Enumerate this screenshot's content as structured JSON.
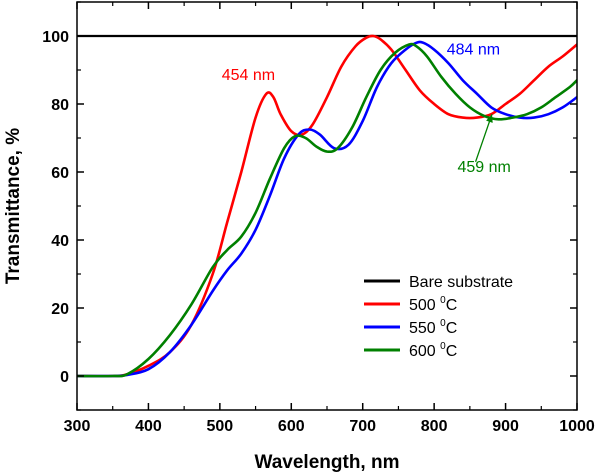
{
  "chart_data": {
    "type": "line",
    "title": "",
    "xlabel": "Wavelength, nm",
    "ylabel": "Transmittance, %",
    "xlim": [
      300,
      1000
    ],
    "ylim": [
      -10,
      110
    ],
    "xticks": [
      300,
      400,
      500,
      600,
      700,
      800,
      900,
      1000
    ],
    "xtick_labels": [
      "300",
      "400",
      "500",
      "600",
      "700",
      "800",
      "900",
      "1000"
    ],
    "yticks": [
      0,
      20,
      40,
      60,
      80,
      100
    ],
    "ytick_labels": [
      "0",
      "20",
      "40",
      "60",
      "80",
      "100"
    ],
    "grid": false,
    "legend_position": "bottom-right",
    "series": [
      {
        "name": "Bare substrate",
        "name_sup": "",
        "color": "#000000",
        "x": [
          300,
          400,
          500,
          600,
          700,
          800,
          900,
          1000
        ],
        "y": [
          100,
          100,
          100,
          100,
          100,
          100,
          100,
          100
        ]
      },
      {
        "name": "500 ",
        "name_sup": "0",
        "name_suffix": "C",
        "color": "#ff0000",
        "x": [
          300,
          350,
          370,
          400,
          430,
          460,
          490,
          510,
          530,
          550,
          565,
          575,
          585,
          600,
          615,
          630,
          650,
          670,
          690,
          705,
          715,
          725,
          740,
          760,
          780,
          800,
          820,
          840,
          860,
          880,
          900,
          920,
          940,
          960,
          980,
          1000
        ],
        "y": [
          0,
          0,
          0.5,
          3,
          7,
          15,
          30,
          45,
          60,
          76,
          83,
          82,
          77,
          72,
          71,
          74,
          82,
          91,
          97,
          99.5,
          100,
          99,
          96,
          90,
          84,
          80,
          77,
          76,
          76,
          77,
          80,
          83,
          87,
          91,
          94,
          97.5
        ]
      },
      {
        "name": "550 ",
        "name_sup": "0",
        "name_suffix": "C",
        "color": "#0000ff",
        "x": [
          300,
          350,
          370,
          400,
          430,
          460,
          490,
          510,
          530,
          550,
          570,
          590,
          610,
          625,
          640,
          660,
          680,
          700,
          720,
          740,
          760,
          775,
          785,
          800,
          820,
          840,
          860,
          880,
          900,
          920,
          940,
          960,
          980,
          1000
        ],
        "y": [
          0,
          0,
          0.3,
          2,
          7,
          15,
          25,
          31,
          36,
          43,
          53,
          64,
          71,
          72.5,
          71,
          67,
          68,
          75,
          85,
          92,
          96,
          98,
          98,
          96,
          92,
          87,
          83,
          79,
          77,
          76,
          76,
          77,
          79,
          82
        ]
      },
      {
        "name": "600 ",
        "name_sup": "0",
        "name_suffix": "C",
        "color": "#008000",
        "x": [
          300,
          350,
          370,
          400,
          430,
          460,
          490,
          510,
          530,
          550,
          570,
          590,
          605,
          620,
          635,
          650,
          665,
          685,
          705,
          725,
          745,
          765,
          775,
          790,
          810,
          830,
          850,
          870,
          890,
          910,
          930,
          950,
          970,
          990,
          1000
        ],
        "y": [
          0,
          0,
          0.5,
          5,
          12,
          21,
          32,
          37,
          41,
          48,
          58,
          67,
          70.5,
          70,
          67.5,
          66,
          67,
          73,
          82,
          90,
          95,
          97.5,
          97,
          94,
          88,
          83,
          79,
          76.5,
          75.5,
          76,
          77,
          79,
          82,
          85,
          87
        ]
      }
    ],
    "annotations": [
      {
        "text": "454 nm",
        "color": "#ff0000",
        "x": 540,
        "y": 87
      },
      {
        "text": "484 nm",
        "color": "#0000ff",
        "x": 855,
        "y": 94.5
      },
      {
        "text": "459 nm",
        "color": "#008000",
        "x": 870,
        "y": 60
      }
    ]
  },
  "legend": {
    "entries": [
      {
        "text": "Bare substrate",
        "sup": "",
        "suffix": ""
      },
      {
        "text": "500 ",
        "sup": "0",
        "suffix": "C"
      },
      {
        "text": "550 ",
        "sup": "0",
        "suffix": "C"
      },
      {
        "text": "600 ",
        "sup": "0",
        "suffix": "C"
      }
    ]
  }
}
